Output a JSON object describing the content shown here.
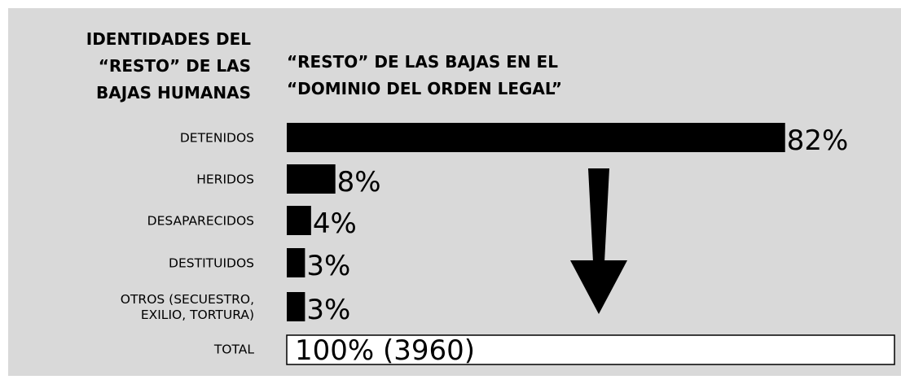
{
  "chart_data": {
    "type": "bar",
    "orientation": "horizontal",
    "left_title": "IDENTIDADES DEL\n“RESTO” DE LAS\nBAJAS HUMANAS",
    "title": "“RESTO” DE LAS BAJAS EN EL\n“DOMINIO DEL ORDEN LEGAL”",
    "categories": [
      "DETENIDOS",
      "HERIDOS",
      "DESAPARECIDOS",
      "DESTITUIDOS",
      "OTROS (SECUESTRO,\nEXILIO, TORTURA)"
    ],
    "values": [
      82,
      8,
      4,
      3,
      3
    ],
    "value_labels": [
      "82%",
      "8%",
      "4%",
      "3%",
      "3%"
    ],
    "color": "#000000",
    "total": {
      "category": "TOTAL",
      "value": 100,
      "value_label": "100% (3960)",
      "color": "#ffffff"
    },
    "xlim": [
      0,
      100
    ]
  }
}
